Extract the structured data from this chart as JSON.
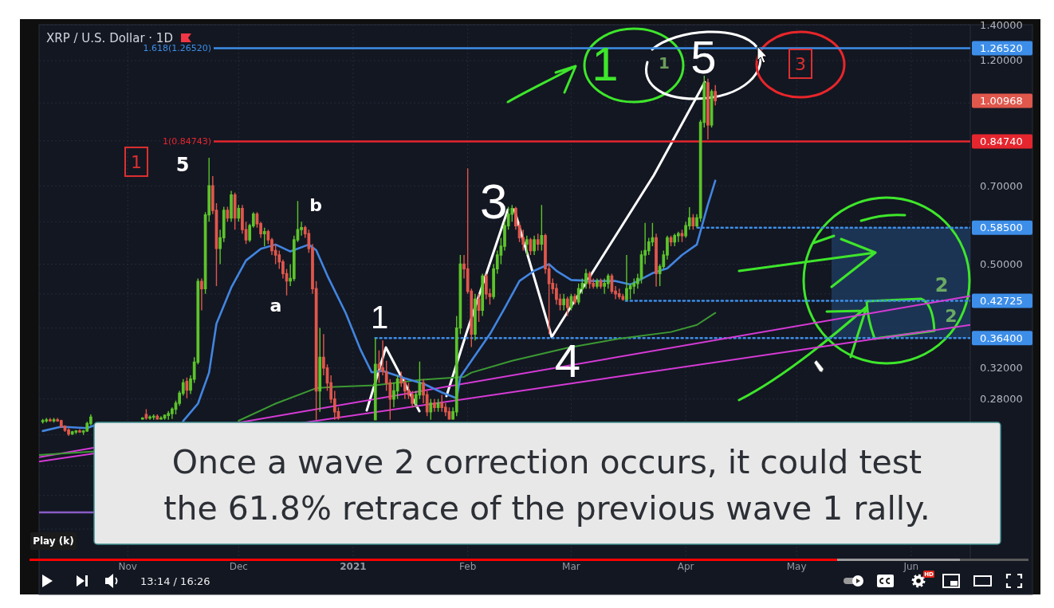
{
  "chart_data": {
    "type": "candlestick",
    "title": "XRP / U.S. Dollar · 1D",
    "x": [
      "2020-10-09",
      "2020-10-10",
      "2020-10-11",
      "2020-10-12",
      "2020-10-13",
      "2020-10-14",
      "2020-10-15",
      "2020-10-16",
      "2020-10-17",
      "2020-10-18",
      "2020-10-19",
      "2020-10-20",
      "2020-10-21",
      "2020-10-22",
      "2020-11-05",
      "2020-11-06",
      "2020-11-07",
      "2020-11-08",
      "2020-11-09",
      "2020-11-10",
      "2020-11-11",
      "2020-11-12",
      "2020-11-13",
      "2020-11-14",
      "2020-11-15",
      "2020-11-16",
      "2020-11-17",
      "2020-11-18",
      "2020-11-19",
      "2020-11-20",
      "2020-11-21",
      "2020-11-22",
      "2020-11-23",
      "2020-11-24",
      "2020-11-25",
      "2020-11-26",
      "2020-11-27",
      "2020-11-28",
      "2020-11-29",
      "2020-11-30",
      "2020-12-01",
      "2020-12-02",
      "2020-12-03",
      "2020-12-04",
      "2020-12-05",
      "2020-12-06",
      "2020-12-07",
      "2020-12-08",
      "2020-12-09",
      "2020-12-10",
      "2020-12-11",
      "2020-12-12",
      "2020-12-13",
      "2020-12-14",
      "2020-12-15",
      "2020-12-16",
      "2020-12-17",
      "2020-12-18",
      "2020-12-19",
      "2020-12-20",
      "2020-12-21",
      "2020-12-22",
      "2020-12-23",
      "2020-12-24",
      "2020-12-25",
      "2020-12-26",
      "2020-12-27",
      "2020-12-28",
      "2021-01-07",
      "2021-01-08",
      "2021-01-09",
      "2021-01-10",
      "2021-01-11",
      "2021-01-12",
      "2021-01-13",
      "2021-01-14",
      "2021-01-15",
      "2021-01-16",
      "2021-01-17",
      "2021-01-18",
      "2021-01-19",
      "2021-01-20",
      "2021-01-21",
      "2021-01-22",
      "2021-01-23",
      "2021-01-24",
      "2021-01-25",
      "2021-01-26",
      "2021-01-27",
      "2021-01-28",
      "2021-01-29",
      "2021-01-30",
      "2021-01-31",
      "2021-02-01",
      "2021-02-02",
      "2021-02-03",
      "2021-02-04",
      "2021-02-05",
      "2021-02-06",
      "2021-02-07",
      "2021-02-08",
      "2021-02-09",
      "2021-02-10",
      "2021-02-11",
      "2021-02-12",
      "2021-02-13",
      "2021-02-14",
      "2021-02-15",
      "2021-02-16",
      "2021-02-17",
      "2021-02-18",
      "2021-02-19",
      "2021-02-20",
      "2021-02-21",
      "2021-02-22",
      "2021-02-23",
      "2021-02-24",
      "2021-02-25",
      "2021-02-26",
      "2021-02-27",
      "2021-02-28",
      "2021-03-01",
      "2021-03-02",
      "2021-03-03",
      "2021-03-04",
      "2021-03-05",
      "2021-03-06",
      "2021-03-07",
      "2021-03-08",
      "2021-03-09",
      "2021-03-10",
      "2021-03-11",
      "2021-03-12",
      "2021-03-13",
      "2021-03-14",
      "2021-03-15",
      "2021-03-16",
      "2021-03-17",
      "2021-03-18",
      "2021-03-19",
      "2021-03-20",
      "2021-03-21",
      "2021-03-22",
      "2021-03-23",
      "2021-03-24",
      "2021-03-25",
      "2021-03-26",
      "2021-03-27",
      "2021-03-28",
      "2021-03-29",
      "2021-03-30",
      "2021-03-31",
      "2021-04-01",
      "2021-04-02",
      "2021-04-03",
      "2021-04-04",
      "2021-04-05",
      "2021-04-06",
      "2021-04-07",
      "2021-04-08",
      "2021-04-09"
    ],
    "ohlc": [
      [
        0.254,
        0.257,
        0.252,
        0.255
      ],
      [
        0.255,
        0.258,
        0.253,
        0.256
      ],
      [
        0.256,
        0.258,
        0.254,
        0.255
      ],
      [
        0.255,
        0.258,
        0.253,
        0.256
      ],
      [
        0.256,
        0.258,
        0.254,
        0.255
      ],
      [
        0.255,
        0.256,
        0.247,
        0.249
      ],
      [
        0.249,
        0.25,
        0.243,
        0.245
      ],
      [
        0.245,
        0.247,
        0.239,
        0.241
      ],
      [
        0.241,
        0.244,
        0.24,
        0.243
      ],
      [
        0.243,
        0.245,
        0.241,
        0.244
      ],
      [
        0.244,
        0.246,
        0.242,
        0.243
      ],
      [
        0.243,
        0.245,
        0.24,
        0.244
      ],
      [
        0.244,
        0.254,
        0.243,
        0.252
      ],
      [
        0.252,
        0.262,
        0.25,
        0.259
      ],
      [
        0.257,
        0.259,
        0.256,
        0.258
      ],
      [
        0.262,
        0.268,
        0.256,
        0.258
      ],
      [
        0.258,
        0.261,
        0.256,
        0.259
      ],
      [
        0.259,
        0.262,
        0.256,
        0.26
      ],
      [
        0.26,
        0.262,
        0.256,
        0.257
      ],
      [
        0.257,
        0.26,
        0.256,
        0.258
      ],
      [
        0.258,
        0.262,
        0.256,
        0.261
      ],
      [
        0.261,
        0.266,
        0.256,
        0.263
      ],
      [
        0.263,
        0.27,
        0.257,
        0.268
      ],
      [
        0.268,
        0.278,
        0.262,
        0.275
      ],
      [
        0.275,
        0.29,
        0.272,
        0.287
      ],
      [
        0.287,
        0.305,
        0.284,
        0.3
      ],
      [
        0.302,
        0.307,
        0.281,
        0.291
      ],
      [
        0.291,
        0.31,
        0.286,
        0.305
      ],
      [
        0.305,
        0.335,
        0.3,
        0.328
      ],
      [
        0.328,
        0.47,
        0.325,
        0.464
      ],
      [
        0.464,
        0.47,
        0.41,
        0.45
      ],
      [
        0.45,
        0.625,
        0.44,
        0.618
      ],
      [
        0.618,
        0.79,
        0.6,
        0.7
      ],
      [
        0.7,
        0.73,
        0.62,
        0.63
      ],
      [
        0.63,
        0.65,
        0.455,
        0.535
      ],
      [
        0.535,
        0.58,
        0.5,
        0.56
      ],
      [
        0.56,
        0.64,
        0.55,
        0.63
      ],
      [
        0.63,
        0.64,
        0.6,
        0.61
      ],
      [
        0.61,
        0.685,
        0.6,
        0.673
      ],
      [
        0.673,
        0.68,
        0.58,
        0.61
      ],
      [
        0.61,
        0.645,
        0.6,
        0.635
      ],
      [
        0.635,
        0.645,
        0.57,
        0.58
      ],
      [
        0.58,
        0.6,
        0.545,
        0.555
      ],
      [
        0.555,
        0.595,
        0.55,
        0.59
      ],
      [
        0.59,
        0.625,
        0.585,
        0.62
      ],
      [
        0.62,
        0.625,
        0.585,
        0.595
      ],
      [
        0.595,
        0.6,
        0.56,
        0.57
      ],
      [
        0.57,
        0.585,
        0.54,
        0.575
      ],
      [
        0.575,
        0.58,
        0.545,
        0.555
      ],
      [
        0.555,
        0.56,
        0.52,
        0.53
      ],
      [
        0.53,
        0.545,
        0.5,
        0.52
      ],
      [
        0.52,
        0.53,
        0.49,
        0.505
      ],
      [
        0.505,
        0.51,
        0.47,
        0.48
      ],
      [
        0.48,
        0.49,
        0.437,
        0.465
      ],
      [
        0.465,
        0.5,
        0.455,
        0.47
      ],
      [
        0.47,
        0.565,
        0.465,
        0.555
      ],
      [
        0.555,
        0.656,
        0.55,
        0.58
      ],
      [
        0.58,
        0.6,
        0.565,
        0.585
      ],
      [
        0.585,
        0.59,
        0.56,
        0.57
      ],
      [
        0.57,
        0.58,
        0.525,
        0.535
      ],
      [
        0.535,
        0.545,
        0.44,
        0.45
      ],
      [
        0.45,
        0.465,
        0.256,
        0.29
      ],
      [
        0.29,
        0.38,
        0.265,
        0.335
      ],
      [
        0.335,
        0.37,
        0.31,
        0.32
      ],
      [
        0.32,
        0.325,
        0.29,
        0.3
      ],
      [
        0.3,
        0.31,
        0.275,
        0.28
      ],
      [
        0.28,
        0.29,
        0.256,
        0.265
      ],
      [
        0.265,
        0.27,
        0.256,
        0.258
      ],
      [
        0.256,
        0.364,
        0.256,
        0.325
      ],
      [
        0.325,
        0.345,
        0.3,
        0.32
      ],
      [
        0.32,
        0.36,
        0.31,
        0.315
      ],
      [
        0.315,
        0.33,
        0.29,
        0.3
      ],
      [
        0.3,
        0.305,
        0.256,
        0.28
      ],
      [
        0.28,
        0.3,
        0.27,
        0.29
      ],
      [
        0.29,
        0.31,
        0.28,
        0.305
      ],
      [
        0.305,
        0.315,
        0.295,
        0.3
      ],
      [
        0.3,
        0.305,
        0.28,
        0.29
      ],
      [
        0.29,
        0.3,
        0.28,
        0.285
      ],
      [
        0.285,
        0.29,
        0.27,
        0.275
      ],
      [
        0.275,
        0.29,
        0.27,
        0.285
      ],
      [
        0.285,
        0.329,
        0.28,
        0.3
      ],
      [
        0.3,
        0.305,
        0.275,
        0.285
      ],
      [
        0.285,
        0.29,
        0.26,
        0.265
      ],
      [
        0.265,
        0.28,
        0.256,
        0.275
      ],
      [
        0.275,
        0.28,
        0.265,
        0.27
      ],
      [
        0.27,
        0.28,
        0.265,
        0.275
      ],
      [
        0.275,
        0.285,
        0.265,
        0.27
      ],
      [
        0.27,
        0.275,
        0.26,
        0.265
      ],
      [
        0.265,
        0.27,
        0.256,
        0.257
      ],
      [
        0.257,
        0.27,
        0.256,
        0.265
      ],
      [
        0.265,
        0.4,
        0.26,
        0.38
      ],
      [
        0.38,
        0.52,
        0.37,
        0.5
      ],
      [
        0.5,
        0.52,
        0.47,
        0.49
      ],
      [
        0.49,
        0.755,
        0.44,
        0.445
      ],
      [
        0.445,
        0.45,
        0.35,
        0.37
      ],
      [
        0.37,
        0.44,
        0.36,
        0.43
      ],
      [
        0.43,
        0.44,
        0.39,
        0.41
      ],
      [
        0.41,
        0.48,
        0.4,
        0.475
      ],
      [
        0.475,
        0.48,
        0.43,
        0.44
      ],
      [
        0.44,
        0.45,
        0.42,
        0.435
      ],
      [
        0.435,
        0.5,
        0.43,
        0.49
      ],
      [
        0.49,
        0.53,
        0.48,
        0.52
      ],
      [
        0.52,
        0.56,
        0.5,
        0.54
      ],
      [
        0.54,
        0.6,
        0.53,
        0.59
      ],
      [
        0.59,
        0.64,
        0.58,
        0.62
      ],
      [
        0.62,
        0.645,
        0.6,
        0.635
      ],
      [
        0.635,
        0.64,
        0.58,
        0.59
      ],
      [
        0.59,
        0.6,
        0.55,
        0.56
      ],
      [
        0.56,
        0.58,
        0.53,
        0.545
      ],
      [
        0.545,
        0.565,
        0.52,
        0.555
      ],
      [
        0.555,
        0.56,
        0.52,
        0.53
      ],
      [
        0.53,
        0.565,
        0.52,
        0.555
      ],
      [
        0.555,
        0.57,
        0.53,
        0.545
      ],
      [
        0.545,
        0.645,
        0.53,
        0.565
      ],
      [
        0.565,
        0.57,
        0.48,
        0.49
      ],
      [
        0.49,
        0.5,
        0.37,
        0.46
      ],
      [
        0.46,
        0.47,
        0.44,
        0.45
      ],
      [
        0.45,
        0.46,
        0.42,
        0.43
      ],
      [
        0.43,
        0.44,
        0.41,
        0.42
      ],
      [
        0.42,
        0.44,
        0.41,
        0.43
      ],
      [
        0.43,
        0.435,
        0.4,
        0.415
      ],
      [
        0.415,
        0.44,
        0.41,
        0.435
      ],
      [
        0.435,
        0.44,
        0.42,
        0.425
      ],
      [
        0.425,
        0.46,
        0.42,
        0.45
      ],
      [
        0.45,
        0.47,
        0.44,
        0.46
      ],
      [
        0.46,
        0.49,
        0.45,
        0.48
      ],
      [
        0.48,
        0.485,
        0.45,
        0.46
      ],
      [
        0.46,
        0.47,
        0.45,
        0.455
      ],
      [
        0.455,
        0.47,
        0.45,
        0.465
      ],
      [
        0.465,
        0.47,
        0.45,
        0.455
      ],
      [
        0.455,
        0.47,
        0.44,
        0.46
      ],
      [
        0.46,
        0.48,
        0.45,
        0.475
      ],
      [
        0.475,
        0.48,
        0.44,
        0.445
      ],
      [
        0.445,
        0.455,
        0.43,
        0.44
      ],
      [
        0.44,
        0.45,
        0.43,
        0.435
      ],
      [
        0.435,
        0.44,
        0.427,
        0.43
      ],
      [
        0.43,
        0.52,
        0.427,
        0.45
      ],
      [
        0.45,
        0.46,
        0.43,
        0.455
      ],
      [
        0.455,
        0.47,
        0.44,
        0.46
      ],
      [
        0.46,
        0.48,
        0.45,
        0.47
      ],
      [
        0.47,
        0.53,
        0.46,
        0.52
      ],
      [
        0.52,
        0.597,
        0.5,
        0.53
      ],
      [
        0.53,
        0.56,
        0.52,
        0.55
      ],
      [
        0.55,
        0.597,
        0.54,
        0.56
      ],
      [
        0.56,
        0.57,
        0.454,
        0.48
      ],
      [
        0.48,
        0.5,
        0.455,
        0.495
      ],
      [
        0.495,
        0.53,
        0.49,
        0.52
      ],
      [
        0.52,
        0.565,
        0.51,
        0.56
      ],
      [
        0.56,
        0.565,
        0.54,
        0.55
      ],
      [
        0.55,
        0.57,
        0.54,
        0.565
      ],
      [
        0.565,
        0.575,
        0.55,
        0.57
      ],
      [
        0.57,
        0.58,
        0.55,
        0.565
      ],
      [
        0.565,
        0.6,
        0.56,
        0.59
      ],
      [
        0.59,
        0.639,
        0.58,
        0.61
      ],
      [
        0.61,
        0.62,
        0.58,
        0.59
      ],
      [
        0.59,
        0.62,
        0.585,
        0.61
      ],
      [
        0.61,
        0.93,
        0.6,
        0.92
      ],
      [
        0.92,
        1.124,
        0.9,
        1.09
      ],
      [
        1.09,
        1.11,
        0.855,
        0.91
      ],
      [
        0.91,
        1.06,
        0.9,
        1.05
      ],
      [
        1.05,
        1.08,
        0.99,
        1.00968
      ]
    ],
    "colors": [
      "#5cc42b",
      "#5cc42b",
      "#e0574c",
      "#5cc42b",
      "#e0574c",
      "#e0574c",
      "#e0574c",
      "#e0574c",
      "#5cc42b",
      "#5cc42b",
      "#e0574c",
      "#5cc42b",
      "#5cc42b",
      "#5cc42b",
      "#5cc42b",
      "#e0574c",
      "#5cc42b",
      "#5cc42b",
      "#e0574c",
      "#5cc42b",
      "#5cc42b",
      "#5cc42b",
      "#5cc42b",
      "#5cc42b",
      "#5cc42b",
      "#5cc42b",
      "#e0574c",
      "#5cc42b",
      "#5cc42b",
      "#5cc42b",
      "#e0574c",
      "#5cc42b",
      "#5cc42b",
      "#e0574c",
      "#e0574c",
      "#5cc42b",
      "#5cc42b",
      "#e0574c",
      "#5cc42b",
      "#e0574c",
      "#5cc42b",
      "#e0574c",
      "#e0574c",
      "#5cc42b",
      "#5cc42b",
      "#e0574c",
      "#e0574c",
      "#5cc42b",
      "#e0574c",
      "#e0574c",
      "#e0574c",
      "#e0574c",
      "#e0574c",
      "#e0574c",
      "#5cc42b",
      "#5cc42b",
      "#5cc42b",
      "#5cc42b",
      "#e0574c",
      "#e0574c",
      "#e0574c",
      "#e0574c",
      "#5cc42b",
      "#e0574c",
      "#e0574c",
      "#e0574c",
      "#e0574c",
      "#e0574c",
      "#5cc42b",
      "#e0574c",
      "#e0574c",
      "#e0574c",
      "#e0574c",
      "#5cc42b",
      "#5cc42b",
      "#e0574c",
      "#e0574c",
      "#e0574c",
      "#e0574c",
      "#5cc42b",
      "#5cc42b",
      "#e0574c",
      "#e0574c",
      "#5cc42b",
      "#e0574c",
      "#5cc42b",
      "#e0574c",
      "#e0574c",
      "#e0574c",
      "#5cc42b",
      "#5cc42b",
      "#5cc42b",
      "#e0574c",
      "#e0574c",
      "#e0574c",
      "#5cc42b",
      "#e0574c",
      "#5cc42b",
      "#e0574c",
      "#e0574c",
      "#5cc42b",
      "#5cc42b",
      "#5cc42b",
      "#5cc42b",
      "#5cc42b",
      "#5cc42b",
      "#e0574c",
      "#e0574c",
      "#e0574c",
      "#5cc42b",
      "#e0574c",
      "#5cc42b",
      "#e0574c",
      "#5cc42b",
      "#e0574c",
      "#e0574c",
      "#e0574c",
      "#e0574c",
      "#e0574c",
      "#5cc42b",
      "#e0574c",
      "#5cc42b",
      "#e0574c",
      "#5cc42b",
      "#5cc42b",
      "#5cc42b",
      "#e0574c",
      "#e0574c",
      "#5cc42b",
      "#e0574c",
      "#5cc42b",
      "#5cc42b",
      "#e0574c",
      "#e0574c",
      "#e0574c",
      "#e0574c",
      "#5cc42b",
      "#5cc42b",
      "#5cc42b",
      "#5cc42b",
      "#5cc42b",
      "#5cc42b",
      "#5cc42b",
      "#5cc42b",
      "#e0574c",
      "#5cc42b",
      "#5cc42b",
      "#5cc42b",
      "#e0574c",
      "#5cc42b",
      "#5cc42b",
      "#e0574c",
      "#5cc42b",
      "#5cc42b",
      "#e0574c",
      "#5cc42b",
      "#5cc42b",
      "#5cc42b",
      "#e0574c",
      "#5cc42b",
      "#e0574c"
    ],
    "series": [
      {
        "type": "line",
        "color": "#d63ad6",
        "x": [
          "2020-10-08",
          "2021-06-17"
        ],
        "values": [
          0.218,
          0.436
        ]
      },
      {
        "type": "line",
        "color": "#d63ad6",
        "x": [
          "2020-10-08",
          "2021-06-17"
        ],
        "values": [
          0.214,
          0.385
        ]
      },
      {
        "type": "line",
        "color": "#3c9a32",
        "x": [
          "2020-10-08",
          "2020-10-23",
          "2020-11-15",
          "2020-12-01",
          "2020-12-11",
          "2020-12-22",
          "2020-12-27",
          "2021-01-07",
          "2021-01-19",
          "2021-01-31",
          "2021-02-02",
          "2021-02-13",
          "2021-02-28",
          "2021-03-14",
          "2021-03-28",
          "2021-04-04",
          "2021-04-09"
        ],
        "values": [
          0.22,
          0.2235,
          null,
          0.255,
          0.2745,
          0.2934,
          0.295,
          0.297,
          0.304,
          0.308,
          0.3136,
          0.33,
          0.349,
          0.363,
          0.3735,
          0.385,
          0.4055
        ]
      },
      {
        "type": "line",
        "color": "#4285e0",
        "x": [
          "2020-10-09",
          "2020-10-14",
          "2020-10-21",
          "2020-10-23",
          "2020-11-01",
          "2020-11-16",
          "2020-11-20",
          "2020-11-23",
          "2020-11-25",
          "2020-11-29",
          "2020-12-03",
          "2020-12-07",
          "2020-12-11",
          "2020-12-15",
          "2020-12-20",
          "2020-12-22",
          "2020-12-25",
          "2020-12-30",
          "2021-01-03",
          "2021-01-06",
          "2021-01-09",
          "2021-01-15",
          "2021-01-20",
          "2021-01-25",
          "2021-01-29",
          "2021-01-30",
          "2021-02-02",
          "2021-02-07",
          "2021-02-11",
          "2021-02-15",
          "2021-02-19",
          "2021-02-23",
          "2021-02-25",
          "2021-03-01",
          "2021-03-07",
          "2021-03-13",
          "2021-03-17",
          "2021-03-19",
          "2021-03-23",
          "2021-03-27",
          "2021-03-31",
          "2021-04-04",
          "2021-04-07",
          "2021-04-09"
        ],
        "values": [
          0.244,
          0.2485,
          0.247,
          0.25,
          null,
          0.2546,
          0.2745,
          0.3136,
          0.387,
          0.452,
          0.508,
          0.534,
          0.544,
          0.528,
          0.544,
          0.531,
          0.476,
          0.405,
          0.346,
          0.314,
          0.316,
          0.306,
          0.299,
          0.288,
          0.281,
          0.308,
          0.33,
          0.37,
          0.414,
          0.465,
          0.486,
          0.5,
          0.486,
          0.467,
          0.465,
          0.465,
          0.458,
          0.465,
          0.481,
          0.491,
          0.52,
          0.544,
          0.646,
          0.716
        ]
      }
    ],
    "xlim": [
      "2020-10-08",
      "2021-06-17"
    ],
    "xticks": [
      {
        "value": "2020-11-01",
        "label": "Nov"
      },
      {
        "value": "2020-12-01",
        "label": "Dec"
      },
      {
        "value": "2021-01-01",
        "label": "2021"
      },
      {
        "value": "2021-02-01",
        "label": "Feb"
      },
      {
        "value": "2021-03-01",
        "label": "Mar"
      },
      {
        "value": "2021-04-01",
        "label": "Apr"
      },
      {
        "value": "2021-05-01",
        "label": "May"
      },
      {
        "value": "2021-06-01",
        "label": "Jun"
      }
    ],
    "ylim": [
      0.14,
      1.4
    ],
    "yticks": [
      {
        "value": 1.4,
        "label": "1.40000"
      },
      {
        "value": 1.2652,
        "label": "1.26520"
      },
      {
        "value": 1.2,
        "label": "1.20000"
      },
      {
        "value": 1.00968,
        "label": "1.00968"
      },
      {
        "value": 1,
        "label": null
      },
      {
        "value": 0.85,
        "label": null
      },
      {
        "value": 0.8474,
        "label": "0.84740"
      },
      {
        "value": 0.7,
        "label": "0.70000"
      },
      {
        "value": 0.6,
        "label": null
      },
      {
        "value": 0.585,
        "label": "0.58500"
      },
      {
        "value": 0.5,
        "label": "0.50000"
      },
      {
        "value": 0.44,
        "label": null
      },
      {
        "value": 0.42725,
        "label": "0.42725"
      },
      {
        "value": 0.38,
        "label": null
      },
      {
        "value": 0.364,
        "label": "0.36400"
      },
      {
        "value": 0.32,
        "label": "0.32000"
      },
      {
        "value": 0.28,
        "label": "0.28000"
      },
      {
        "value": 0.24,
        "label": null
      },
      {
        "value": 0.21,
        "label": null
      },
      {
        "value": 0.185,
        "label": null
      },
      {
        "value": 0.16,
        "label": null
      }
    ],
    "log": true,
    "grid": true,
    "ref_lines": [
      {
        "axis": "y",
        "value": 1.2652,
        "label": "1.618(1.26520)",
        "color": "#3d8ee8"
      },
      {
        "axis": "y",
        "value": 0.8474,
        "label": "1(0.84743)",
        "color": "#e5262e"
      },
      {
        "axis": "y",
        "value": 0.585,
        "color": "#3d8ee8",
        "line_style": "dotted"
      },
      {
        "axis": "y",
        "value": 0.42725,
        "color": "#3d8ee8",
        "line_style": "dotted"
      },
      {
        "axis": "y",
        "value": 0.364,
        "color": "#3d8ee8",
        "line_style": "dotted"
      },
      {
        "axis": "y",
        "value": 0.172,
        "color": "#8a5cc4"
      }
    ],
    "bands": [
      {
        "axis": "y",
        "from": 0.364,
        "to": 0.585,
        "color": "#1f3a5c"
      }
    ],
    "annotations": [
      "1",
      "5",
      "b",
      "a",
      "1",
      {
        "text": "3",
        "x": "2021-02-13",
        "y": 0.645
      },
      "4",
      {
        "text": "5",
        "x": "2021-04-06",
        "y": 1.124
      },
      "1",
      "1",
      "3",
      "2",
      "2",
      "Once a wave 2 correction occurs, it could test",
      "the 61.8% retrace of the previous wave 1 rally.",
      "Play (k)",
      "13:14 / 16:26",
      "HD"
    ]
  }
}
